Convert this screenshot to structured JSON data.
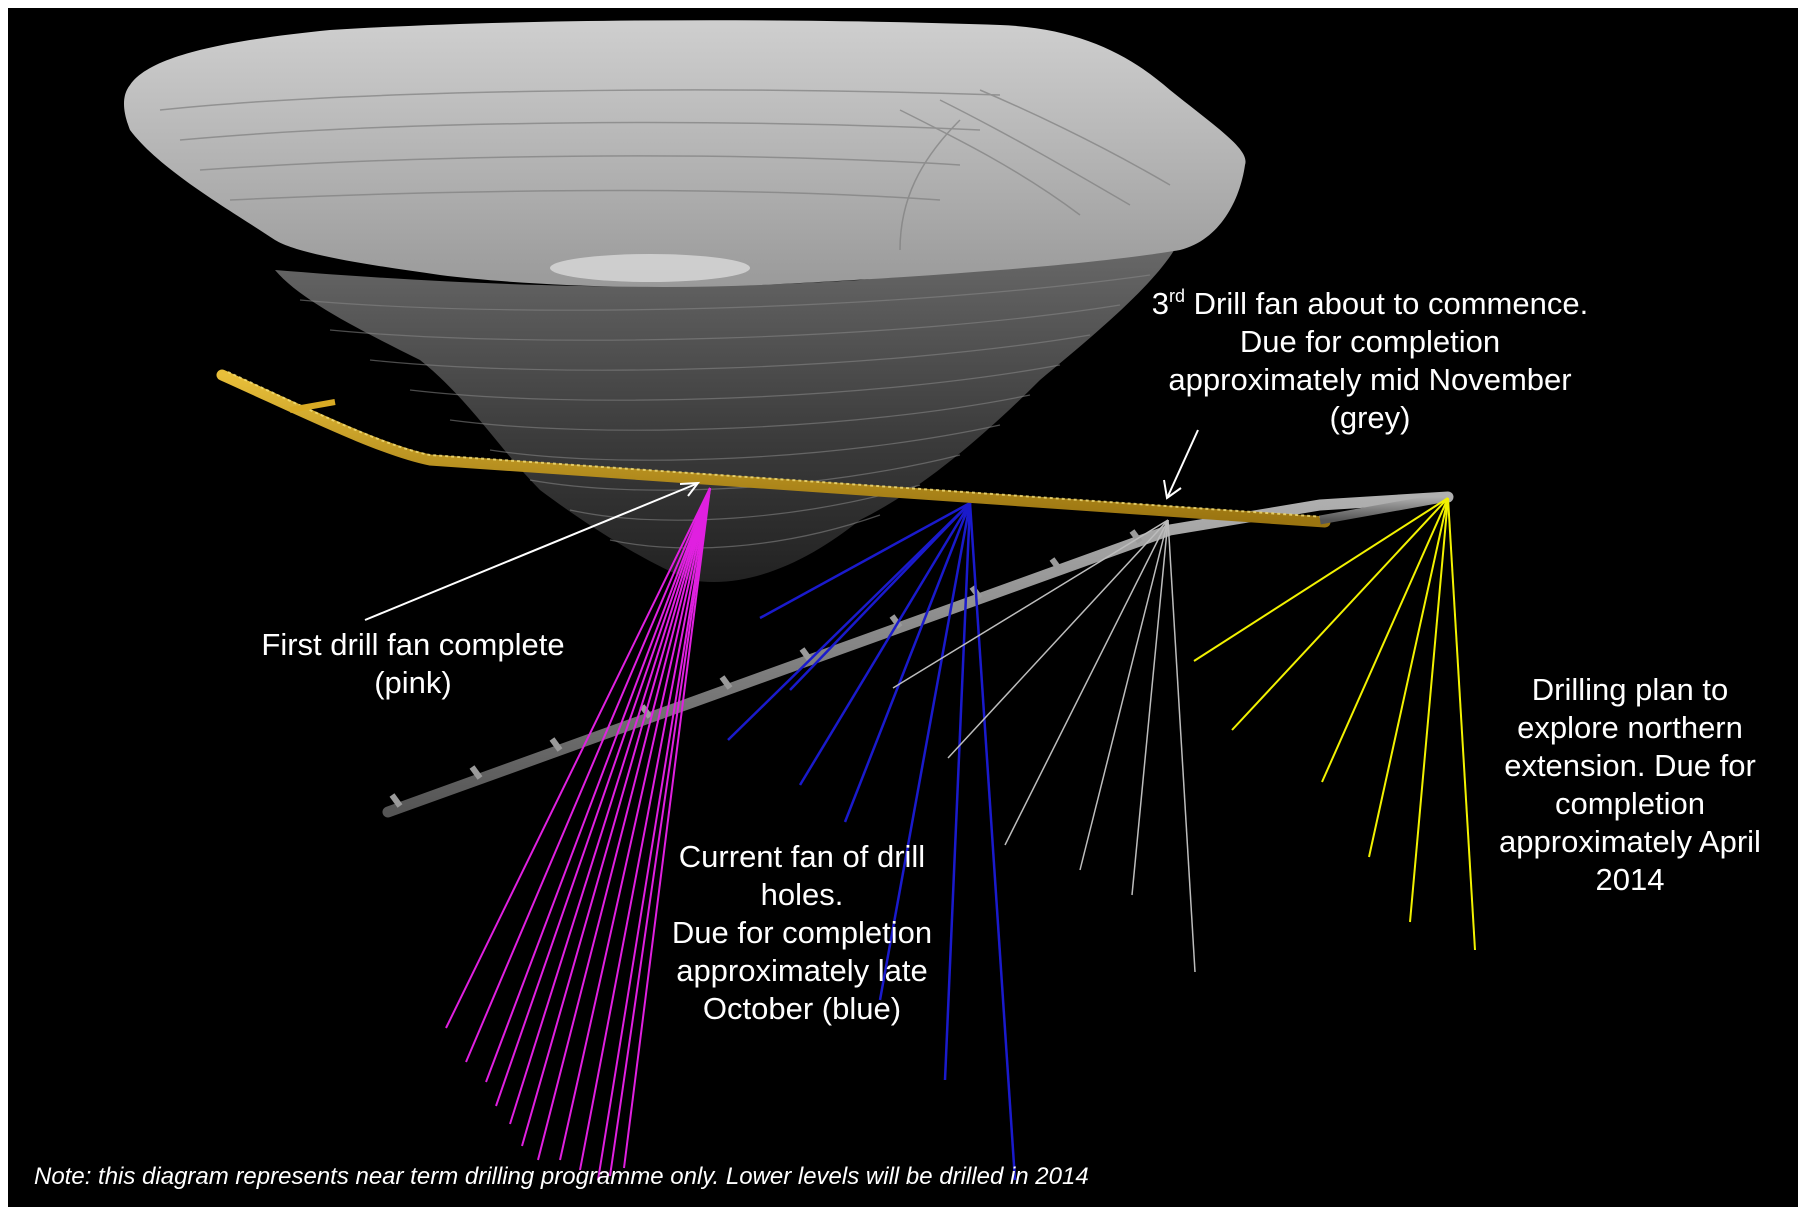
{
  "annotations": {
    "first_fan": {
      "lines": [
        "First drill fan complete",
        "(pink)"
      ],
      "color": "#e020e0"
    },
    "current_fan": {
      "lines": [
        "Current fan of drill",
        "holes.",
        "Due for completion",
        "approximately late",
        "October (blue)"
      ],
      "color": "#1a1acc"
    },
    "third_fan": {
      "ordinal_number": "3",
      "ordinal_suffix": "rd",
      "first_line_rest": " Drill fan about to commence.",
      "lines": [
        "Due for completion",
        "approximately mid November",
        "(grey)"
      ],
      "color": "#bbbbbb"
    },
    "northern_plan": {
      "lines": [
        "Drilling plan to",
        "explore northern",
        "extension. Due for",
        "completion",
        "approximately April",
        "2014"
      ],
      "color": "#f2f200"
    }
  },
  "footnote": "Note: this diagram represents near term drilling programme only.  Lower levels will be drilled in 2014",
  "colors": {
    "background": "#000000",
    "drive": "#c89a1a",
    "lower_drive": "#8a8a8a",
    "pit": "#a8a8a8"
  }
}
